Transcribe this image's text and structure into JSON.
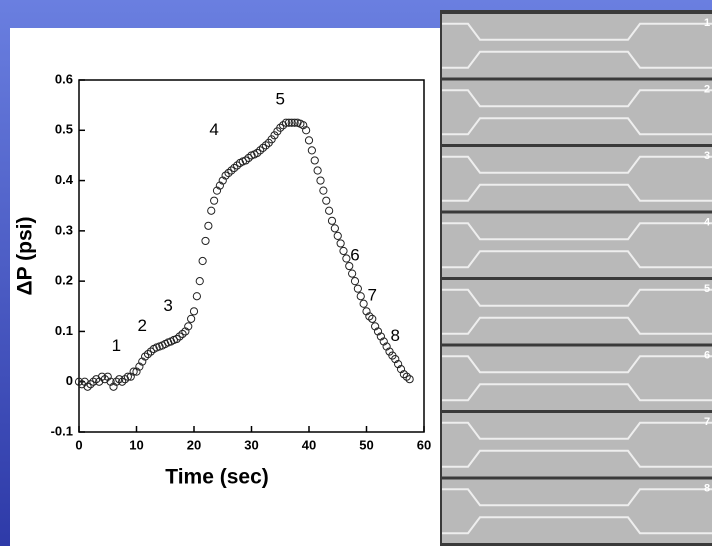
{
  "chart_data": {
    "type": "scatter",
    "xlabel": "Time (sec)",
    "ylabel": "ΔP (psi)",
    "xlim": [
      0,
      60
    ],
    "ylim": [
      -0.1,
      0.6
    ],
    "xticks": [
      0,
      10,
      20,
      30,
      40,
      50,
      60
    ],
    "yticks": [
      -0.1,
      0,
      0.1,
      0.2,
      0.3,
      0.4,
      0.5,
      0.6
    ],
    "marker_color": "#222222",
    "x": [
      0,
      0.5,
      1,
      1.5,
      2,
      2.5,
      3,
      3.5,
      4,
      4.5,
      5,
      5.5,
      6,
      6.5,
      7,
      7.5,
      8,
      8.5,
      9,
      9.5,
      10,
      10.5,
      11,
      11.5,
      12,
      12.5,
      13,
      13.5,
      14,
      14.5,
      15,
      15.5,
      16,
      16.5,
      17,
      17.5,
      18,
      18.5,
      19,
      19.5,
      20,
      20.5,
      21,
      21.5,
      22,
      22.5,
      23,
      23.5,
      24,
      24.5,
      25,
      25.5,
      26,
      26.5,
      27,
      27.5,
      28,
      28.5,
      29,
      29.5,
      30,
      30.5,
      31,
      31.5,
      32,
      32.5,
      33,
      33.5,
      34,
      34.5,
      35,
      35.5,
      36,
      36.5,
      37,
      37.5,
      38,
      38.5,
      39,
      39.5,
      40,
      40.5,
      41,
      41.5,
      42,
      42.5,
      43,
      43.5,
      44,
      44.5,
      45,
      45.5,
      46,
      46.5,
      47,
      47.5,
      48,
      48.5,
      49,
      49.5,
      50,
      50.5,
      51,
      51.5,
      52,
      52.5,
      53,
      53.5,
      54,
      54.5,
      55,
      55.5,
      56,
      56.5,
      57,
      57.5
    ],
    "values": [
      0,
      -0.005,
      0,
      -0.01,
      -0.005,
      0,
      0.005,
      0,
      0.01,
      0.005,
      0.01,
      0,
      -0.01,
      0,
      0.005,
      0,
      0.005,
      0.01,
      0.01,
      0.02,
      0.02,
      0.03,
      0.04,
      0.05,
      0.055,
      0.06,
      0.065,
      0.068,
      0.07,
      0.072,
      0.075,
      0.078,
      0.08,
      0.083,
      0.085,
      0.09,
      0.095,
      0.1,
      0.11,
      0.125,
      0.14,
      0.17,
      0.2,
      0.24,
      0.28,
      0.31,
      0.34,
      0.36,
      0.38,
      0.39,
      0.4,
      0.41,
      0.415,
      0.42,
      0.425,
      0.43,
      0.435,
      0.438,
      0.44,
      0.445,
      0.45,
      0.452,
      0.455,
      0.46,
      0.465,
      0.47,
      0.475,
      0.482,
      0.49,
      0.498,
      0.505,
      0.51,
      0.515,
      0.515,
      0.515,
      0.515,
      0.515,
      0.513,
      0.51,
      0.5,
      0.48,
      0.46,
      0.44,
      0.42,
      0.4,
      0.38,
      0.36,
      0.34,
      0.32,
      0.305,
      0.29,
      0.275,
      0.26,
      0.245,
      0.23,
      0.215,
      0.2,
      0.185,
      0.17,
      0.155,
      0.14,
      0.13,
      0.125,
      0.11,
      0.1,
      0.09,
      0.08,
      0.07,
      0.06,
      0.052,
      0.045,
      0.035,
      0.025,
      0.015,
      0.01,
      0.005
    ],
    "annotations": [
      {
        "text": "1",
        "x": 6.5,
        "y": 0.07
      },
      {
        "text": "2",
        "x": 11,
        "y": 0.11
      },
      {
        "text": "3",
        "x": 15.5,
        "y": 0.15
      },
      {
        "text": "4",
        "x": 23.5,
        "y": 0.5
      },
      {
        "text": "5",
        "x": 35,
        "y": 0.56
      },
      {
        "text": "6",
        "x": 48,
        "y": 0.25
      },
      {
        "text": "7",
        "x": 51,
        "y": 0.17
      },
      {
        "text": "8",
        "x": 55,
        "y": 0.09
      }
    ]
  },
  "image_panels": {
    "labels": [
      "1",
      "2",
      "3",
      "4",
      "5",
      "6",
      "7",
      "8"
    ]
  }
}
